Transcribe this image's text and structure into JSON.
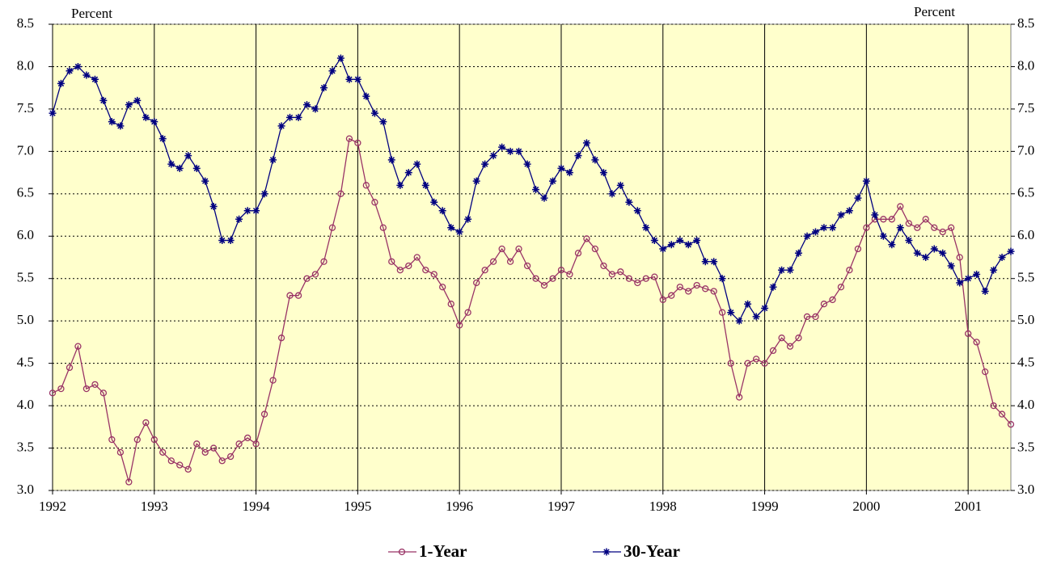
{
  "chart_data": {
    "type": "line",
    "y_label": "Percent",
    "y2_label": "Percent",
    "x": [
      1992.0,
      1992.083,
      1992.167,
      1992.25,
      1992.333,
      1992.417,
      1992.5,
      1992.583,
      1992.667,
      1992.75,
      1992.833,
      1992.917,
      1993.0,
      1993.083,
      1993.167,
      1993.25,
      1993.333,
      1993.417,
      1993.5,
      1993.583,
      1993.667,
      1993.75,
      1993.833,
      1993.917,
      1994.0,
      1994.083,
      1994.167,
      1994.25,
      1994.333,
      1994.417,
      1994.5,
      1994.583,
      1994.667,
      1994.75,
      1994.833,
      1994.917,
      1995.0,
      1995.083,
      1995.167,
      1995.25,
      1995.333,
      1995.417,
      1995.5,
      1995.583,
      1995.667,
      1995.75,
      1995.833,
      1995.917,
      1996.0,
      1996.083,
      1996.167,
      1996.25,
      1996.333,
      1996.417,
      1996.5,
      1996.583,
      1996.667,
      1996.75,
      1996.833,
      1996.917,
      1997.0,
      1997.083,
      1997.167,
      1997.25,
      1997.333,
      1997.417,
      1997.5,
      1997.583,
      1997.667,
      1997.75,
      1997.833,
      1997.917,
      1998.0,
      1998.083,
      1998.167,
      1998.25,
      1998.333,
      1998.417,
      1998.5,
      1998.583,
      1998.667,
      1998.75,
      1998.833,
      1998.917,
      1999.0,
      1999.083,
      1999.167,
      1999.25,
      1999.333,
      1999.417,
      1999.5,
      1999.583,
      1999.667,
      1999.75,
      1999.833,
      1999.917,
      2000.0,
      2000.083,
      2000.167,
      2000.25,
      2000.333,
      2000.417,
      2000.5,
      2000.583,
      2000.667,
      2000.75,
      2000.833,
      2000.917,
      2001.0,
      2001.083,
      2001.167,
      2001.25,
      2001.333,
      2001.42
    ],
    "series": [
      {
        "name": "1-Year",
        "color": "#993366",
        "marker": "circle",
        "values": [
          4.15,
          4.2,
          4.45,
          4.7,
          4.2,
          4.25,
          4.15,
          3.6,
          3.45,
          3.1,
          3.6,
          3.8,
          3.6,
          3.45,
          3.35,
          3.3,
          3.25,
          3.55,
          3.45,
          3.5,
          3.35,
          3.4,
          3.55,
          3.62,
          3.55,
          3.9,
          4.3,
          4.8,
          5.3,
          5.3,
          5.5,
          5.55,
          5.7,
          6.1,
          6.5,
          7.15,
          7.1,
          6.6,
          6.4,
          6.1,
          5.7,
          5.6,
          5.65,
          5.75,
          5.6,
          5.55,
          5.4,
          5.2,
          4.95,
          5.1,
          5.45,
          5.6,
          5.7,
          5.85,
          5.7,
          5.85,
          5.65,
          5.5,
          5.42,
          5.5,
          5.6,
          5.55,
          5.8,
          5.97,
          5.85,
          5.65,
          5.55,
          5.58,
          5.5,
          5.45,
          5.5,
          5.52,
          5.25,
          5.3,
          5.4,
          5.35,
          5.42,
          5.38,
          5.35,
          5.1,
          4.5,
          4.1,
          4.5,
          4.55,
          4.5,
          4.65,
          4.8,
          4.7,
          4.8,
          5.05,
          5.05,
          5.2,
          5.25,
          5.4,
          5.6,
          5.85,
          6.1,
          6.2,
          6.2,
          6.2,
          6.35,
          6.15,
          6.1,
          6.2,
          6.1,
          6.05,
          6.1,
          5.75,
          4.85,
          4.75,
          4.4,
          4.0,
          3.9,
          3.78
        ]
      },
      {
        "name": "30-Year",
        "color": "#000080",
        "marker": "star",
        "values": [
          7.45,
          7.8,
          7.95,
          8.0,
          7.9,
          7.85,
          7.6,
          7.35,
          7.3,
          7.55,
          7.6,
          7.4,
          7.35,
          7.15,
          6.85,
          6.8,
          6.95,
          6.8,
          6.65,
          6.35,
          5.95,
          5.95,
          6.2,
          6.3,
          6.3,
          6.5,
          6.9,
          7.3,
          7.4,
          7.4,
          7.55,
          7.5,
          7.75,
          7.95,
          8.1,
          7.85,
          7.85,
          7.65,
          7.45,
          7.35,
          6.9,
          6.6,
          6.75,
          6.85,
          6.6,
          6.4,
          6.3,
          6.1,
          6.05,
          6.2,
          6.65,
          6.85,
          6.95,
          7.05,
          7.0,
          7.0,
          6.85,
          6.55,
          6.45,
          6.65,
          6.8,
          6.75,
          6.95,
          7.1,
          6.9,
          6.75,
          6.5,
          6.6,
          6.4,
          6.3,
          6.1,
          5.95,
          5.85,
          5.9,
          5.95,
          5.9,
          5.95,
          5.7,
          5.7,
          5.5,
          5.1,
          5.0,
          5.2,
          5.05,
          5.15,
          5.4,
          5.6,
          5.6,
          5.8,
          6.0,
          6.05,
          6.1,
          6.1,
          6.25,
          6.3,
          6.45,
          6.65,
          6.25,
          6.0,
          5.9,
          6.1,
          5.95,
          5.8,
          5.75,
          5.85,
          5.8,
          5.65,
          5.45,
          5.5,
          5.55,
          5.35,
          5.6,
          5.75,
          5.82
        ]
      }
    ],
    "xlim": [
      1992,
      2001.42
    ],
    "xticks": [
      1992,
      1993,
      1994,
      1995,
      1996,
      1997,
      1998,
      1999,
      2000,
      2001
    ],
    "ylim": [
      3,
      8.5
    ],
    "yticks": [
      {
        "value": 3,
        "label": "3.0"
      },
      3.5,
      {
        "value": 4,
        "label": "4.0"
      },
      4.5,
      {
        "value": 5,
        "label": "5.0"
      },
      5.5,
      {
        "value": 6,
        "label": "6.0"
      },
      6.5,
      {
        "value": 7,
        "label": "7.0"
      },
      7.5,
      {
        "value": 8,
        "label": "8.0"
      },
      8.5
    ],
    "y2lim": [
      3,
      8.5
    ],
    "y2ticks": [
      {
        "value": 3,
        "label": "3.0"
      },
      3.5,
      {
        "value": 4,
        "label": "4.0"
      },
      4.5,
      {
        "value": 5,
        "label": "5.0"
      },
      5.5,
      {
        "value": 6,
        "label": "6.0"
      },
      6.5,
      {
        "value": 7,
        "label": "7.0"
      },
      7.5,
      {
        "value": 8,
        "label": "8.0"
      },
      8.5
    ],
    "grid": true,
    "background": "#ffffcc",
    "legend": "bottom"
  }
}
